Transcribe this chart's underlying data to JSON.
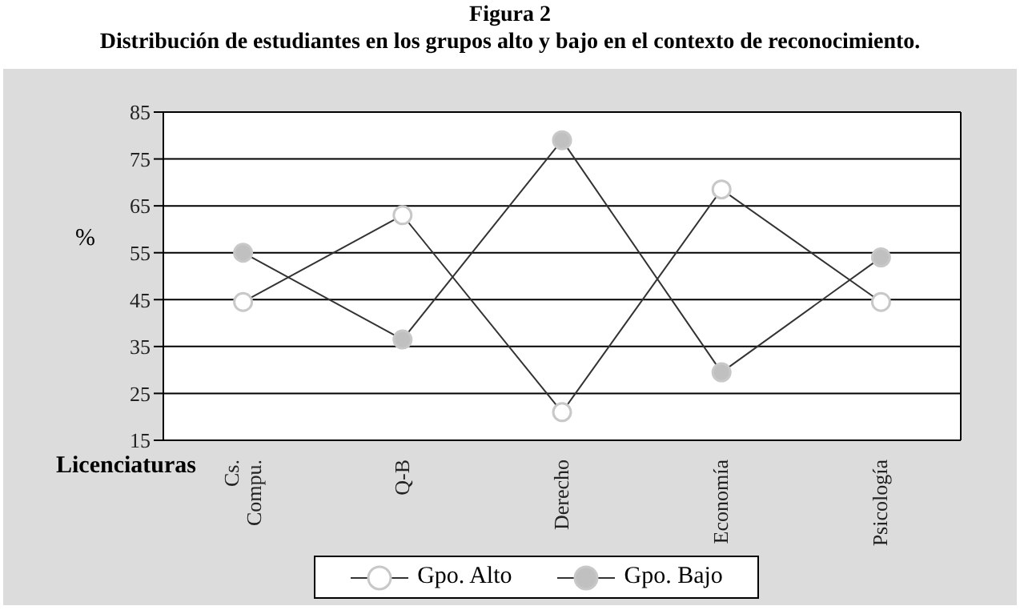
{
  "chart_data": {
    "type": "line",
    "title": "Figura 2",
    "subtitle": "Distribución de estudiantes en los grupos alto y bajo en el contexto de reconocimiento.",
    "xlabel": "Licenciaturas",
    "ylabel": "%",
    "categories": [
      "Cs. Compu.",
      "Q-B",
      "Derecho",
      "Economía",
      "Psicología"
    ],
    "series": [
      {
        "name": "Gpo. Alto",
        "color": "#ffffff",
        "values": [
          44.5,
          63,
          21,
          68.5,
          44.5
        ]
      },
      {
        "name": "Gpo. Bajo",
        "color": "#c0c0c0",
        "values": [
          55,
          36.5,
          79,
          29.5,
          54
        ]
      }
    ],
    "ylim": [
      15,
      85
    ],
    "yticks": [
      15,
      25,
      35,
      45,
      55,
      65,
      75,
      85
    ],
    "grid": "y",
    "legend": "bottom",
    "marker": "circle",
    "line_style": "solid"
  }
}
